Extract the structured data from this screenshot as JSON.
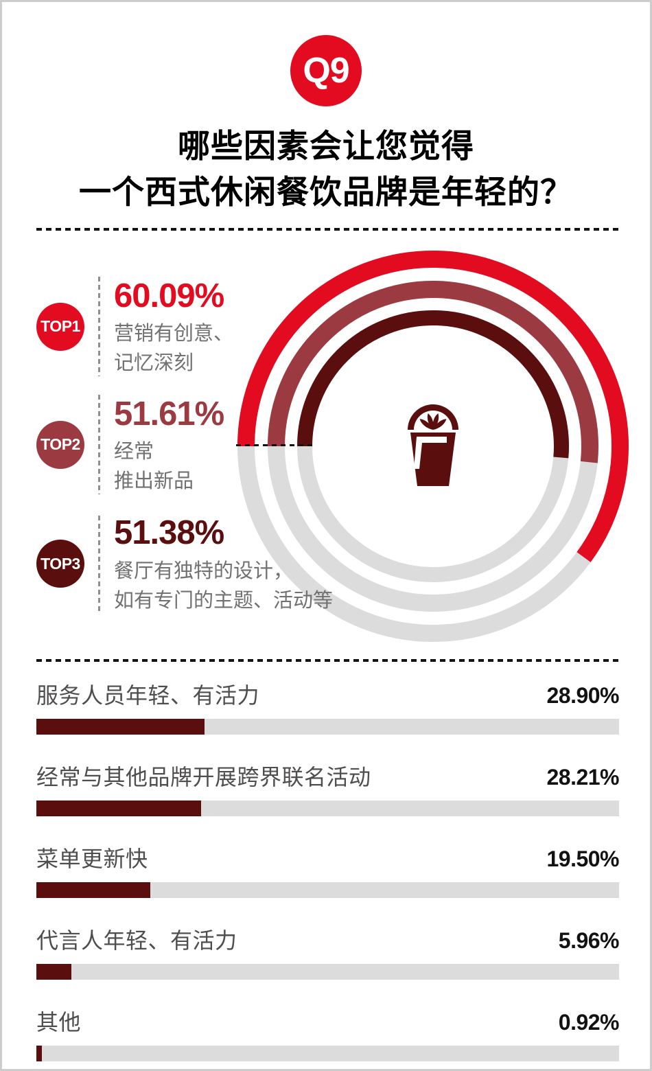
{
  "header": {
    "badge": "Q9",
    "title_line1": "哪些因素会让您觉得",
    "title_line2": "一个西式休闲餐饮品牌是年轻的？"
  },
  "colors": {
    "accent_red": "#e30b20",
    "maroon": "#9c3a42",
    "dark_maroon": "#5a0e0d",
    "track_gray": "#dcdcdc"
  },
  "center_icon": "drink-glass-with-citrus-slice",
  "top_items": [
    {
      "rank": "TOP1",
      "value_label": "60.09%",
      "desc_line1": "营销有创意、",
      "desc_line2": "记忆深刻",
      "color": "#e30b20"
    },
    {
      "rank": "TOP2",
      "value_label": "51.61%",
      "desc_line1": "经常",
      "desc_line2": "推出新品",
      "color": "#9c3a42"
    },
    {
      "rank": "TOP3",
      "value_label": "51.38%",
      "desc_line1": "餐厅有独特的设计，",
      "desc_line2": "如有专门的主题、活动等",
      "color": "#5a0e0d"
    }
  ],
  "chart_data": [
    {
      "type": "pie",
      "subtype": "concentric_progress_arcs",
      "title": "TOP3 因素占比",
      "start_angle_deg": 180,
      "direction": "clockwise",
      "max": 100,
      "track_color": "#dcdcdc",
      "series": [
        {
          "name": "营销有创意、记忆深刻",
          "value": 60.09,
          "color": "#e30b20"
        },
        {
          "name": "经常推出新品",
          "value": 51.61,
          "color": "#9c3a42"
        },
        {
          "name": "餐厅有独特的设计，如有专门的主题、活动等",
          "value": 51.38,
          "color": "#5a0e0d"
        }
      ]
    },
    {
      "type": "bar",
      "orientation": "horizontal",
      "xlim": [
        0,
        100
      ],
      "bar_color": "#5a0e0d",
      "track_color": "#dcdcdc",
      "categories": [
        "服务人员年轻、有活力",
        "经常与其他品牌开展跨界联名活动",
        "菜单更新快",
        "代言人年轻、有活力",
        "其他"
      ],
      "values": [
        28.9,
        28.21,
        19.5,
        5.96,
        0.92
      ],
      "value_labels": [
        "28.90%",
        "28.21%",
        "19.50%",
        "5.96%",
        "0.92%"
      ]
    }
  ]
}
